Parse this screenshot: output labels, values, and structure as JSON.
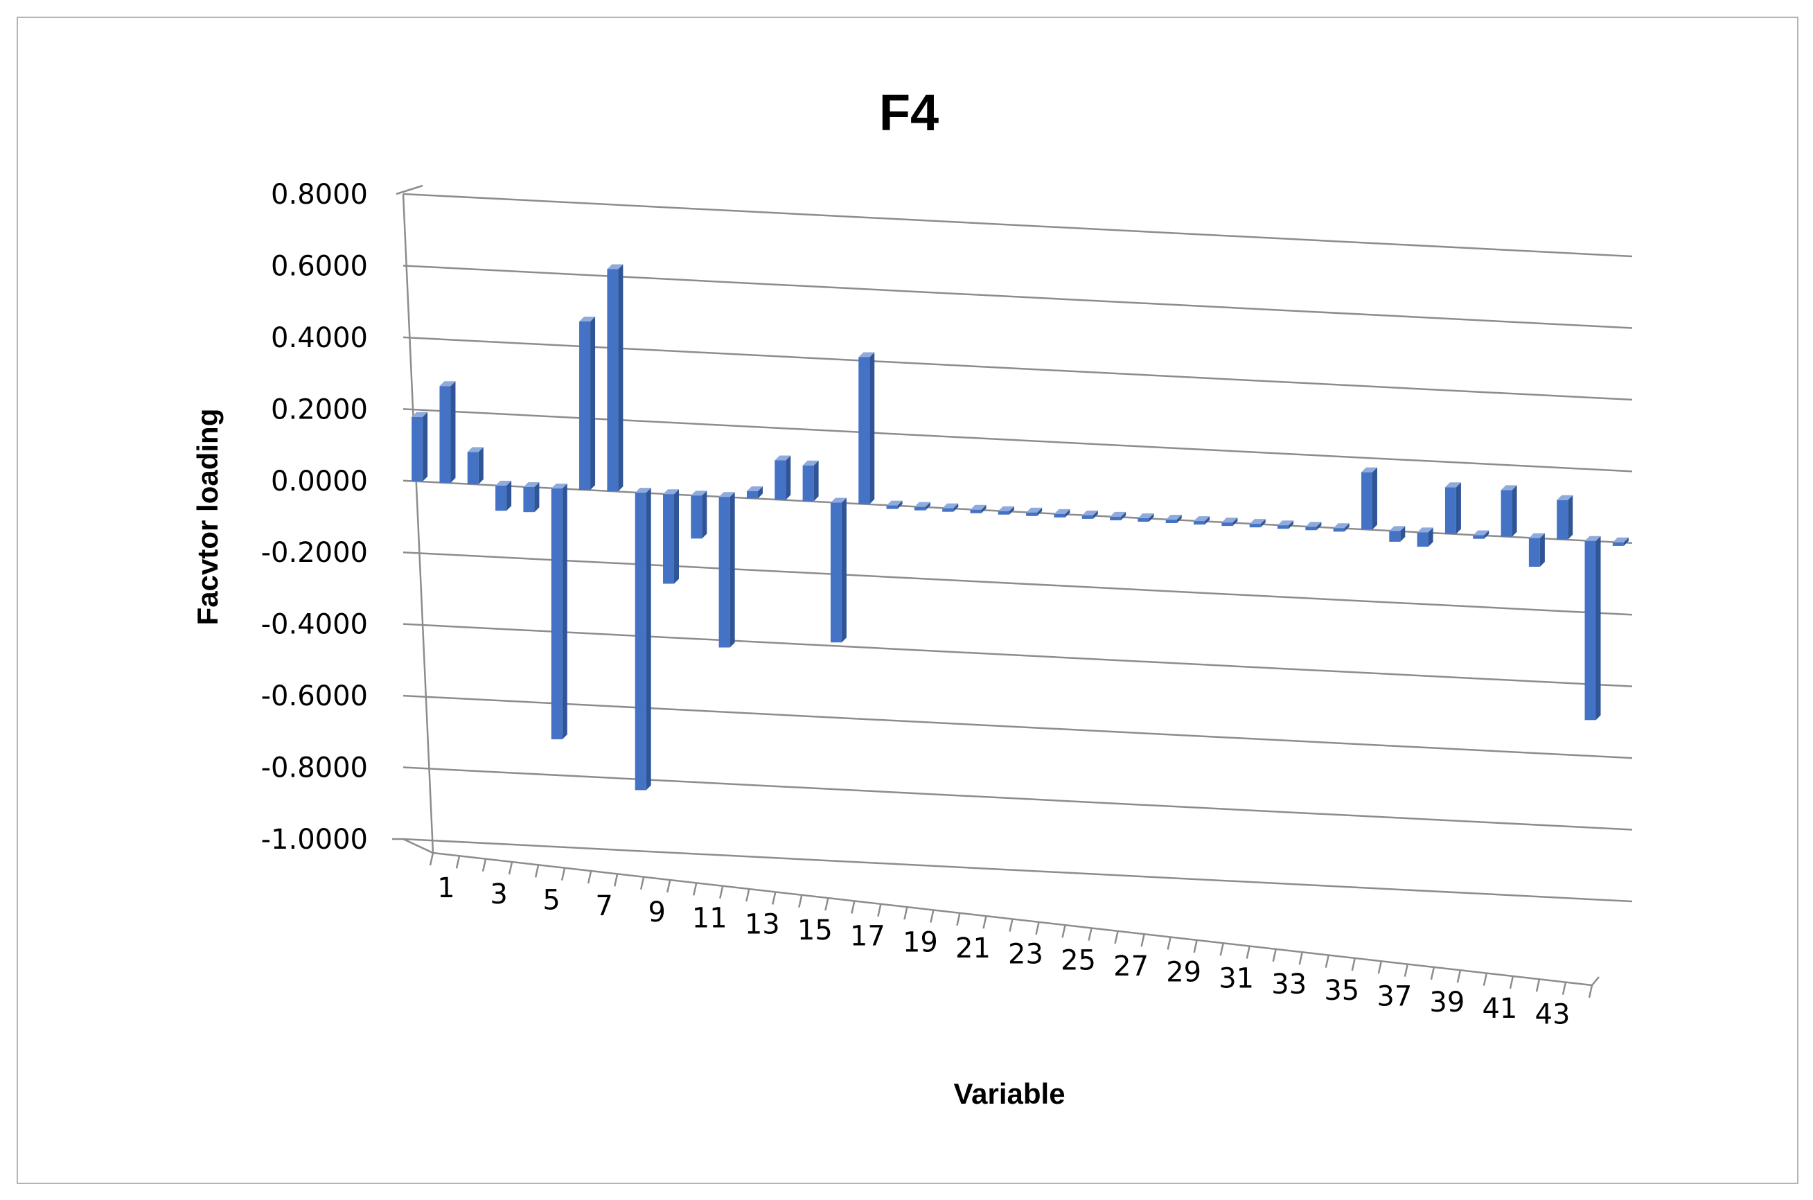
{
  "chart_data": {
    "type": "bar",
    "title": "F4",
    "xlabel": "Variable",
    "ylabel": "Facvtor loading",
    "ylim": [
      -1.0,
      0.8
    ],
    "y_ticks": [
      "0.8000",
      "0.6000",
      "0.4000",
      "0.2000",
      "0.0000",
      "-0.2000",
      "-0.4000",
      "-0.6000",
      "-0.8000",
      "-1.0000"
    ],
    "x_tick_labels": [
      "1",
      "3",
      "5",
      "7",
      "9",
      "11",
      "13",
      "15",
      "17",
      "19",
      "21",
      "23",
      "25",
      "27",
      "29",
      "31",
      "33",
      "35",
      "37",
      "39",
      "41",
      "43"
    ],
    "categories": [
      1,
      2,
      3,
      4,
      5,
      6,
      7,
      8,
      9,
      10,
      11,
      12,
      13,
      14,
      15,
      16,
      17,
      18,
      19,
      20,
      21,
      22,
      23,
      24,
      25,
      26,
      27,
      28,
      29,
      30,
      31,
      32,
      33,
      34,
      35,
      36,
      37,
      38,
      39,
      40,
      41,
      42,
      43,
      44
    ],
    "values": [
      0.18,
      0.27,
      0.09,
      -0.07,
      -0.07,
      -0.7,
      0.47,
      0.62,
      -0.83,
      -0.25,
      -0.12,
      -0.42,
      0.02,
      0.11,
      0.1,
      -0.39,
      0.41,
      0.0,
      0.0,
      0.0,
      0.0,
      0.0,
      0.0,
      0.0,
      0.0,
      0.0,
      0.0,
      0.0,
      0.0,
      0.0,
      0.0,
      0.0,
      0.0,
      0.0,
      0.16,
      -0.03,
      -0.04,
      0.13,
      -0.01,
      0.13,
      -0.08,
      0.11,
      -0.5,
      -0.01
    ],
    "grid": true,
    "legend": "none",
    "colors": {
      "bar": "#4472c4",
      "bar_side": "#2f5597",
      "bar_top": "#8faadc",
      "grid": "#8c8c8c"
    }
  }
}
